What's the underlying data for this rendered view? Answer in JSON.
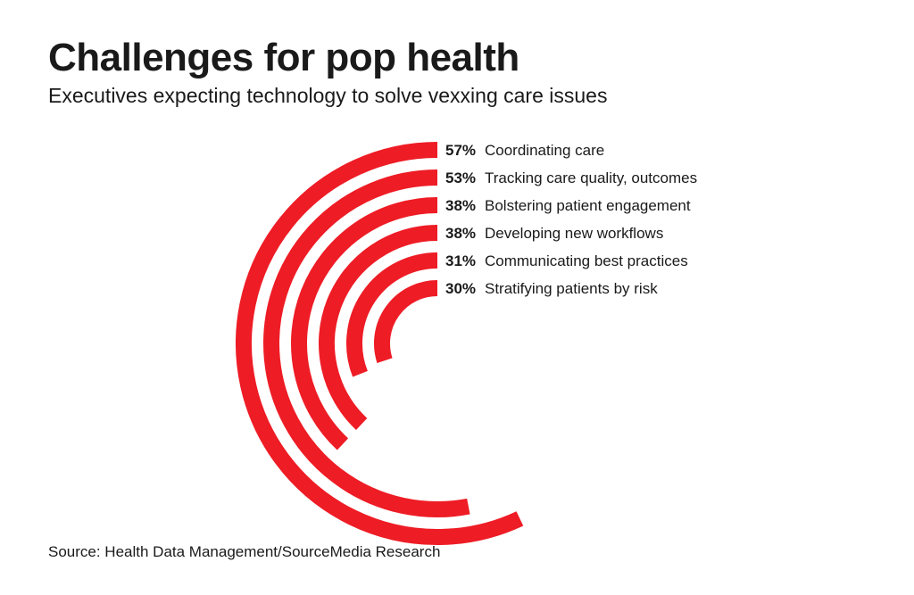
{
  "chart_data": {
    "type": "radial-bar",
    "title": "Challenges for pop health",
    "subtitle": "Executives expecting technology to solve vexxing care issues",
    "categories": [
      "Coordinating care",
      "Tracking care quality, outcomes",
      "Bolstering patient engagement",
      "Developing new workflows",
      "Communicating best practices",
      "Stratifying patients by risk"
    ],
    "values": [
      57,
      53,
      38,
      38,
      31,
      30
    ],
    "value_labels": [
      "57%",
      "53%",
      "38%",
      "38%",
      "31%",
      "30%"
    ],
    "unit": "%",
    "bar_color": "#ee1c25",
    "source": "Source: Health Data Management/SourceMedia Research"
  }
}
